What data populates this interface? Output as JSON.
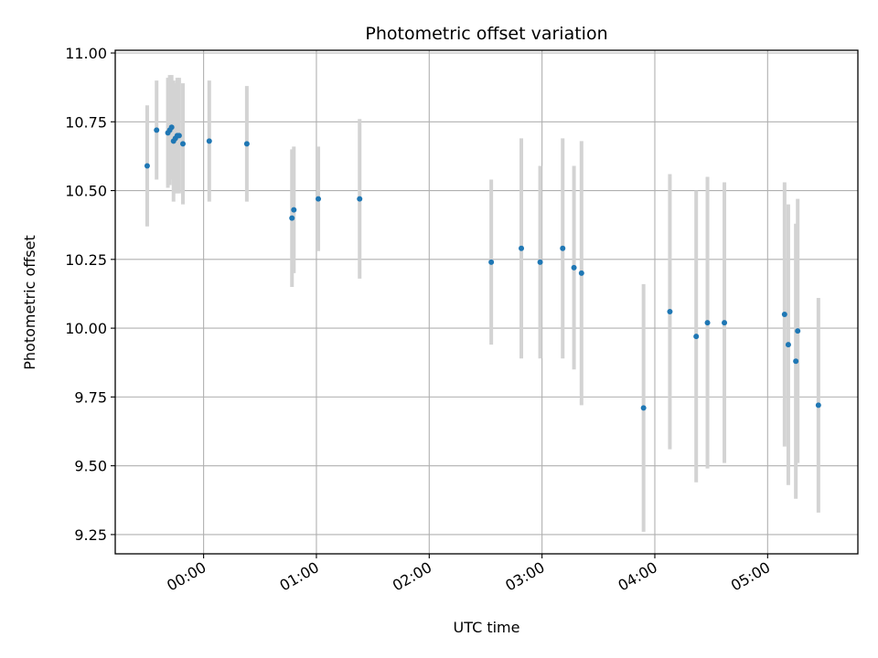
{
  "chart_data": {
    "type": "scatter",
    "title": "Photometric offset variation",
    "xlabel": "UTC time",
    "ylabel": "Photometric offset",
    "xlim": [
      "23:13",
      "05:48"
    ],
    "ylim": [
      9.18,
      11.01
    ],
    "x_ticks": [
      "00:00",
      "01:00",
      "02:00",
      "03:00",
      "04:00",
      "05:00"
    ],
    "y_ticks": [
      "9.25",
      "9.50",
      "9.75",
      "10.00",
      "10.25",
      "10.50",
      "10.75",
      "11.00"
    ],
    "grid": true,
    "colors": {
      "point": "#1f77b4",
      "errorbar": "#d3d3d3",
      "grid": "#b0b0b0"
    },
    "series": [
      {
        "points": [
          {
            "x": "23:30",
            "y": 10.59,
            "err": 0.22
          },
          {
            "x": "23:35",
            "y": 10.72,
            "err": 0.18
          },
          {
            "x": "23:41",
            "y": 10.71,
            "err": 0.2
          },
          {
            "x": "23:42",
            "y": 10.72,
            "err": 0.2
          },
          {
            "x": "23:43",
            "y": 10.73,
            "err": 0.19
          },
          {
            "x": "23:44",
            "y": 10.68,
            "err": 0.22
          },
          {
            "x": "23:45",
            "y": 10.69,
            "err": 0.2
          },
          {
            "x": "23:46",
            "y": 10.7,
            "err": 0.21
          },
          {
            "x": "23:47",
            "y": 10.7,
            "err": 0.21
          },
          {
            "x": "23:49",
            "y": 10.67,
            "err": 0.22
          },
          {
            "x": "00:03",
            "y": 10.68,
            "err": 0.22
          },
          {
            "x": "00:23",
            "y": 10.67,
            "err": 0.21
          },
          {
            "x": "00:47",
            "y": 10.4,
            "err": 0.25
          },
          {
            "x": "00:48",
            "y": 10.43,
            "err": 0.23
          },
          {
            "x": "01:01",
            "y": 10.47,
            "err": 0.19
          },
          {
            "x": "01:23",
            "y": 10.47,
            "err": 0.29
          },
          {
            "x": "02:33",
            "y": 10.24,
            "err": 0.3
          },
          {
            "x": "02:49",
            "y": 10.29,
            "err": 0.4
          },
          {
            "x": "02:59",
            "y": 10.24,
            "err": 0.35
          },
          {
            "x": "03:11",
            "y": 10.29,
            "err": 0.4
          },
          {
            "x": "03:17",
            "y": 10.22,
            "err": 0.37
          },
          {
            "x": "03:21",
            "y": 10.2,
            "err": 0.48
          },
          {
            "x": "03:54",
            "y": 9.71,
            "err": 0.45
          },
          {
            "x": "04:08",
            "y": 10.06,
            "err": 0.5
          },
          {
            "x": "04:22",
            "y": 9.97,
            "err": 0.53
          },
          {
            "x": "04:28",
            "y": 10.02,
            "err": 0.53
          },
          {
            "x": "04:37",
            "y": 10.02,
            "err": 0.51
          },
          {
            "x": "05:09",
            "y": 10.05,
            "err": 0.48
          },
          {
            "x": "05:11",
            "y": 9.94,
            "err": 0.51
          },
          {
            "x": "05:15",
            "y": 9.88,
            "err": 0.5
          },
          {
            "x": "05:16",
            "y": 9.99,
            "err": 0.48
          },
          {
            "x": "05:27",
            "y": 9.72,
            "err": 0.39
          }
        ]
      }
    ]
  }
}
